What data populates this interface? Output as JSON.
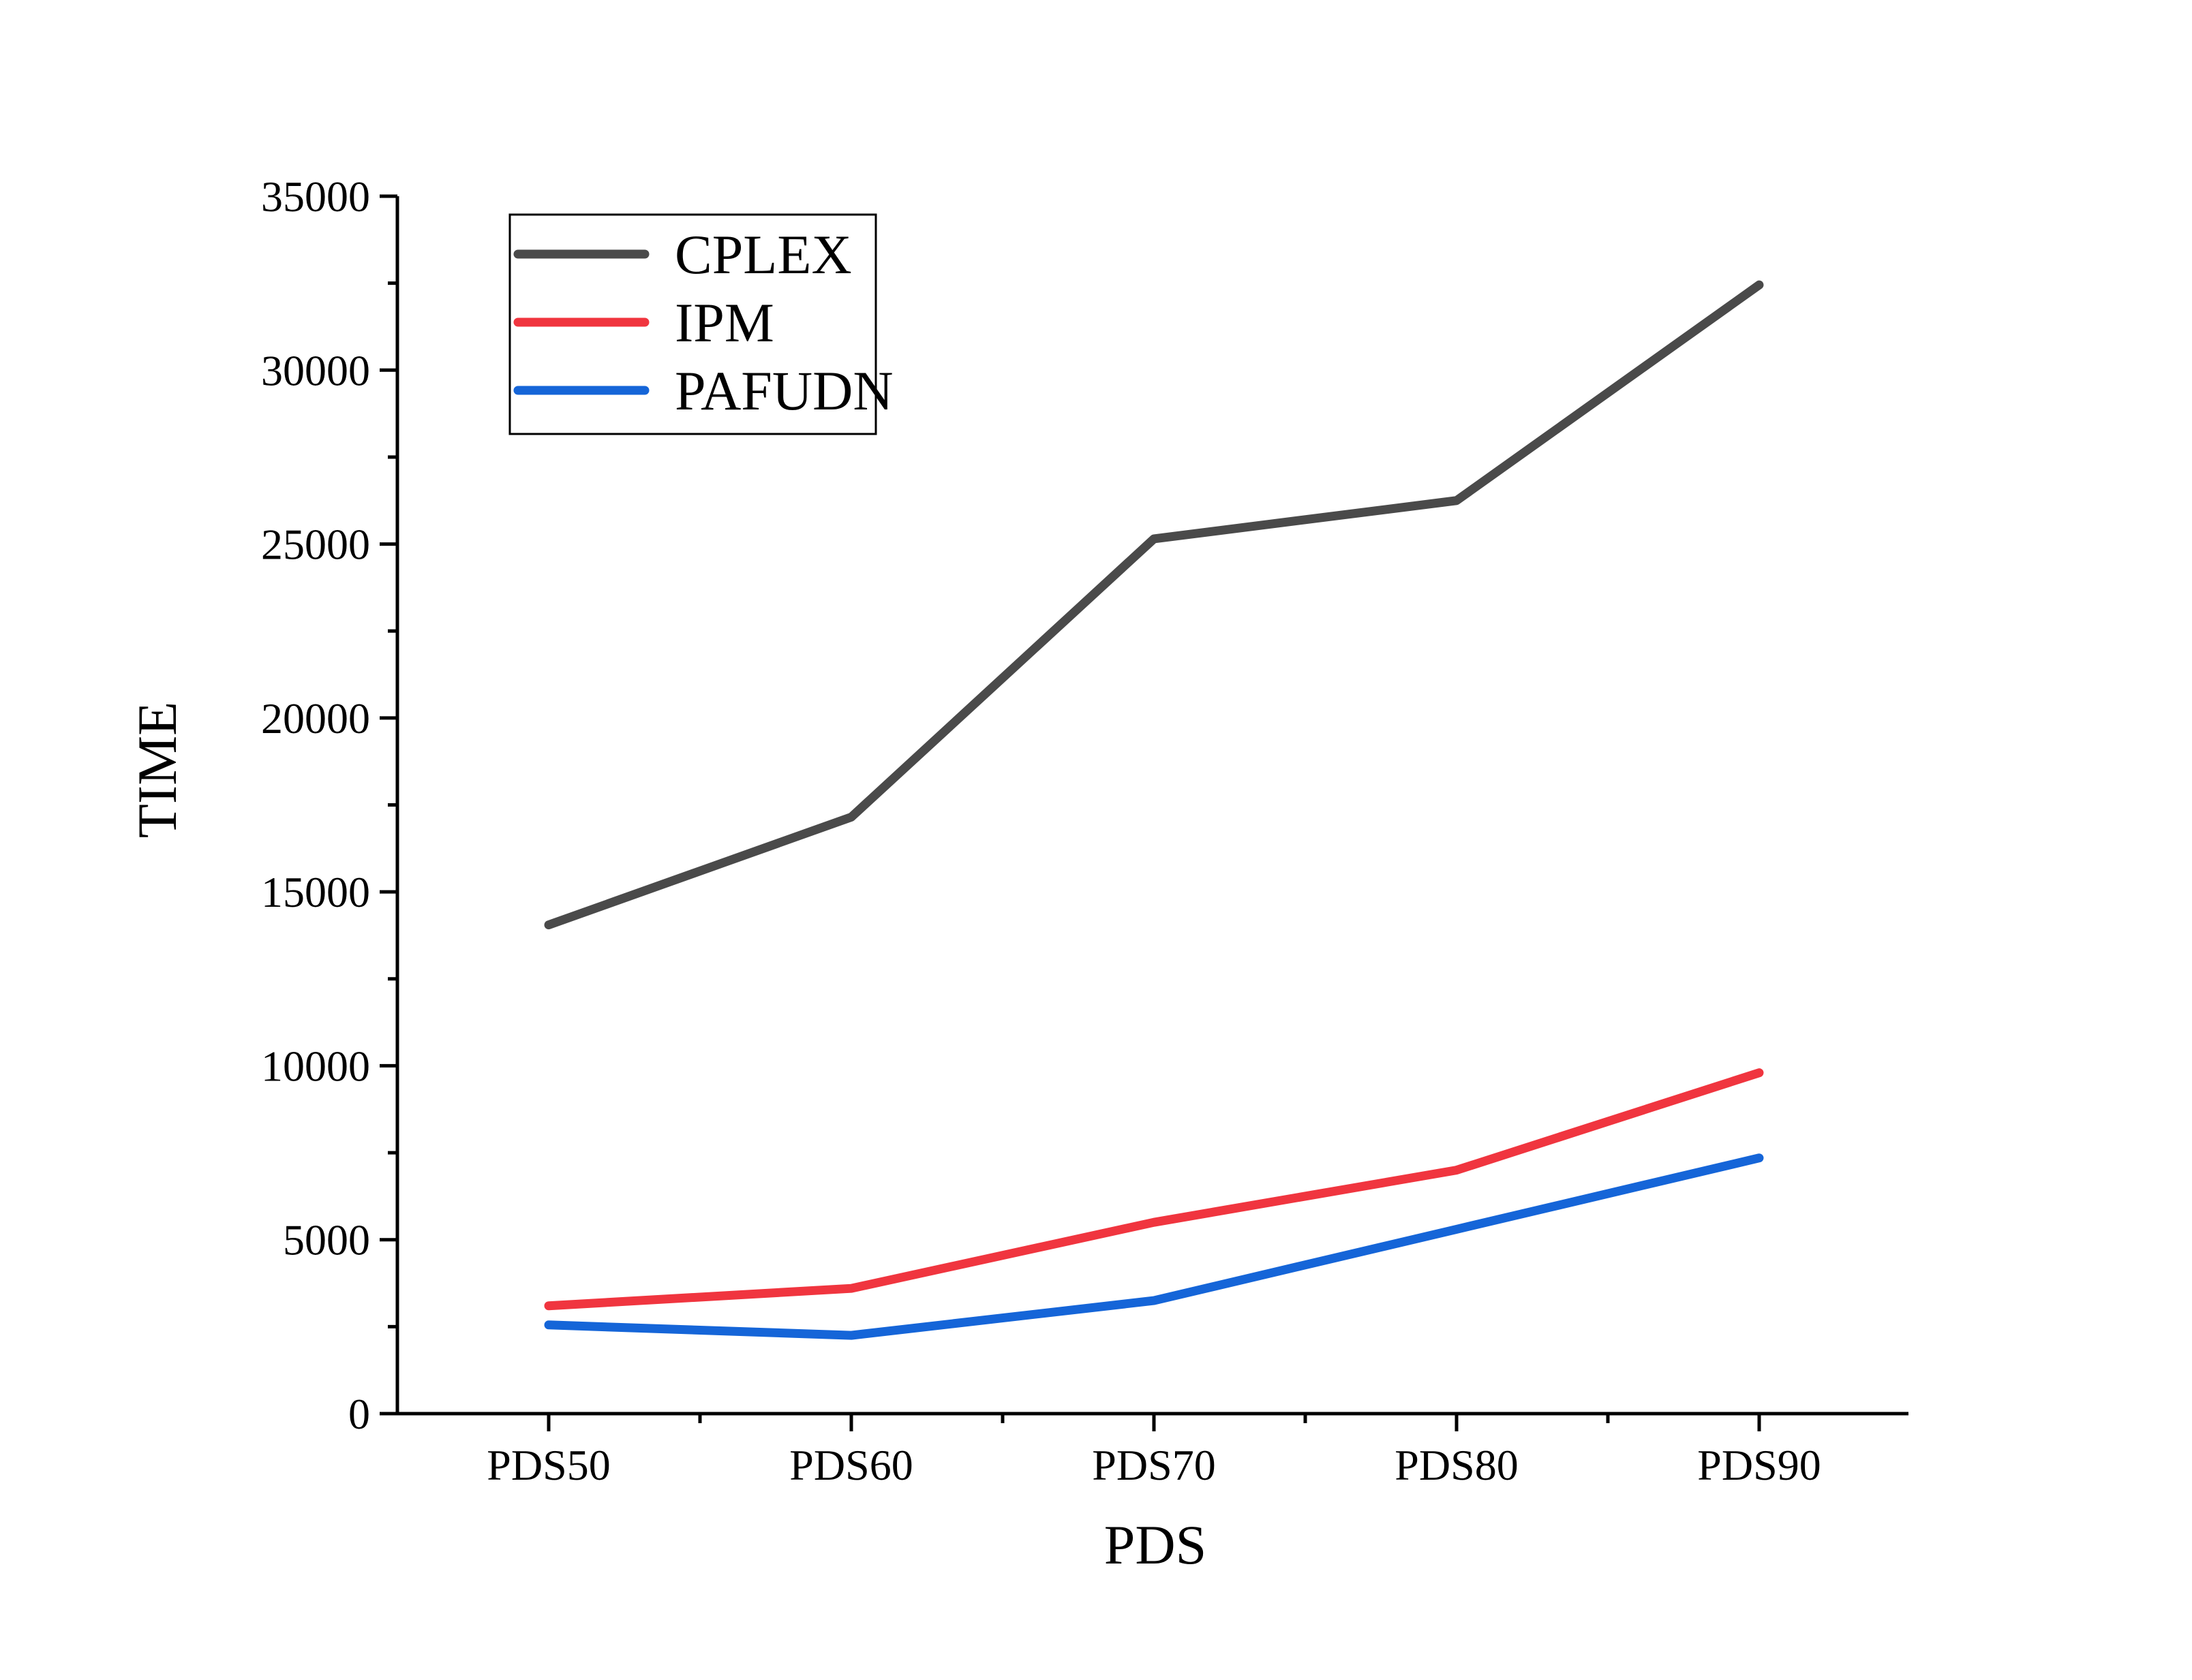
{
  "chart_data": {
    "type": "line",
    "title": "",
    "xlabel": "PDS",
    "ylabel": "TIME",
    "categories": [
      "PDS50",
      "PDS60",
      "PDS70",
      "PDS80",
      "PDS90"
    ],
    "ylim": [
      0,
      35000
    ],
    "yticks": [
      0,
      5000,
      10000,
      15000,
      20000,
      25000,
      30000,
      35000
    ],
    "grid": false,
    "legend_position": "top-left",
    "series": [
      {
        "name": "CPLEX",
        "color": "#4a4a4a",
        "values": [
          14050,
          17150,
          25150,
          26250,
          32450
        ]
      },
      {
        "name": "IPM",
        "color": "#f0353f",
        "values": [
          3100,
          3600,
          5500,
          7000,
          9800
        ]
      },
      {
        "name": "PAFUDN",
        "color": "#1565d8",
        "values": [
          2550,
          2250,
          3250,
          5300,
          7350
        ]
      }
    ]
  }
}
